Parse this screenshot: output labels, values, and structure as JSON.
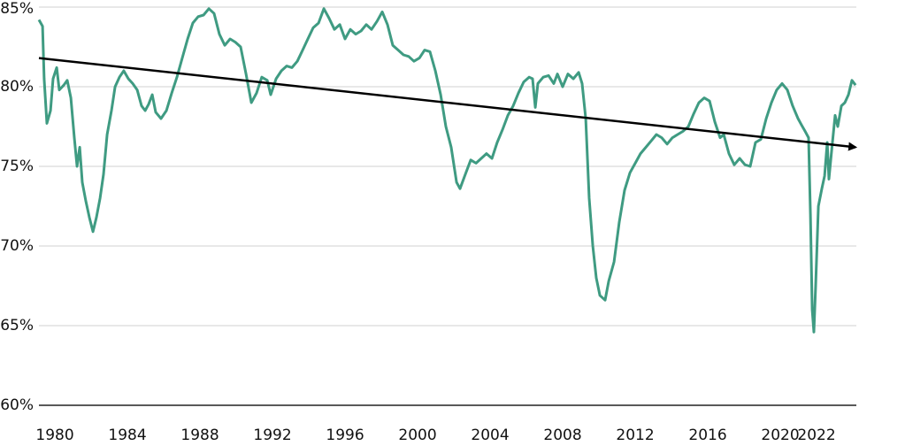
{
  "chart_data": {
    "type": "line",
    "x": [
      1979.12,
      1979.32,
      1979.41,
      1979.56,
      1979.76,
      1979.9,
      1980.1,
      1980.24,
      1980.49,
      1980.68,
      1980.88,
      1981.07,
      1981.22,
      1981.37,
      1981.51,
      1981.71,
      1981.9,
      1982.1,
      1982.29,
      1982.49,
      1982.68,
      1982.88,
      1983.12,
      1983.32,
      1983.56,
      1983.8,
      1984.05,
      1984.29,
      1984.54,
      1984.78,
      1984.98,
      1985.17,
      1985.37,
      1985.56,
      1985.85,
      1986.15,
      1986.44,
      1986.73,
      1987.02,
      1987.32,
      1987.61,
      1987.9,
      1988.2,
      1988.49,
      1988.78,
      1989.07,
      1989.37,
      1989.66,
      1989.95,
      1990.24,
      1990.54,
      1990.83,
      1991.12,
      1991.41,
      1991.71,
      1991.9,
      1992.2,
      1992.49,
      1992.78,
      1993.07,
      1993.37,
      1993.66,
      1993.95,
      1994.24,
      1994.54,
      1994.83,
      1995.12,
      1995.41,
      1995.71,
      1996.0,
      1996.29,
      1996.59,
      1996.88,
      1997.17,
      1997.46,
      1997.76,
      1998.05,
      1998.34,
      1998.63,
      1998.93,
      1999.22,
      1999.51,
      1999.8,
      2000.1,
      2000.39,
      2000.68,
      2000.98,
      2001.27,
      2001.56,
      2001.85,
      2002.15,
      2002.34,
      2002.63,
      2002.93,
      2003.22,
      2003.51,
      2003.8,
      2004.1,
      2004.39,
      2004.68,
      2004.98,
      2005.27,
      2005.56,
      2005.85,
      2006.15,
      2006.34,
      2006.49,
      2006.63,
      2006.93,
      2007.22,
      2007.51,
      2007.71,
      2008.0,
      2008.29,
      2008.59,
      2008.88,
      2009.07,
      2009.27,
      2009.46,
      2009.66,
      2009.85,
      2010.05,
      2010.34,
      2010.54,
      2010.83,
      2011.12,
      2011.41,
      2011.71,
      2012.0,
      2012.29,
      2012.59,
      2012.88,
      2013.17,
      2013.46,
      2013.76,
      2014.05,
      2014.34,
      2014.63,
      2014.93,
      2015.22,
      2015.51,
      2015.8,
      2016.1,
      2016.39,
      2016.68,
      2016.88,
      2017.17,
      2017.46,
      2017.76,
      2018.05,
      2018.34,
      2018.63,
      2018.93,
      2019.22,
      2019.51,
      2019.8,
      2020.1,
      2020.39,
      2020.68,
      2020.98,
      2021.17,
      2021.37,
      2021.56,
      2021.66,
      2021.76,
      2021.85,
      2021.95,
      2022.1,
      2022.29,
      2022.44,
      2022.59,
      2022.68,
      2022.83,
      2023.02,
      2023.17,
      2023.37,
      2023.56,
      2023.76,
      2023.95,
      2024.15
    ],
    "values": [
      84.2,
      83.8,
      80.5,
      77.7,
      78.5,
      80.5,
      81.2,
      79.8,
      80.1,
      80.4,
      79.3,
      76.8,
      75.0,
      76.2,
      74.0,
      72.8,
      71.8,
      70.9,
      71.8,
      73.0,
      74.5,
      77.0,
      78.5,
      80.0,
      80.6,
      81.0,
      80.5,
      80.2,
      79.8,
      78.8,
      78.5,
      78.9,
      79.5,
      78.4,
      78.0,
      78.5,
      79.6,
      80.6,
      81.8,
      83.0,
      84.0,
      84.4,
      84.5,
      84.9,
      84.6,
      83.3,
      82.6,
      83.0,
      82.8,
      82.5,
      80.8,
      79.0,
      79.6,
      80.6,
      80.4,
      79.5,
      80.5,
      81.0,
      81.3,
      81.2,
      81.6,
      82.3,
      83.0,
      83.7,
      84.0,
      84.9,
      84.3,
      83.6,
      83.9,
      83.0,
      83.6,
      83.3,
      83.5,
      83.9,
      83.6,
      84.1,
      84.7,
      83.9,
      82.6,
      82.3,
      82.0,
      81.9,
      81.6,
      81.8,
      82.3,
      82.2,
      81.0,
      79.5,
      77.5,
      76.2,
      74.0,
      73.6,
      74.5,
      75.4,
      75.2,
      75.5,
      75.8,
      75.5,
      76.5,
      77.3,
      78.2,
      78.8,
      79.6,
      80.3,
      80.6,
      80.5,
      78.7,
      80.2,
      80.6,
      80.7,
      80.2,
      80.8,
      80.0,
      80.8,
      80.5,
      80.9,
      80.2,
      78.0,
      73.0,
      70.0,
      68.0,
      66.9,
      66.6,
      67.8,
      69.0,
      71.5,
      73.5,
      74.6,
      75.2,
      75.8,
      76.2,
      76.6,
      77.0,
      76.8,
      76.4,
      76.8,
      77.0,
      77.2,
      77.5,
      78.3,
      79.0,
      79.3,
      79.1,
      77.8,
      76.8,
      77.0,
      75.8,
      75.1,
      75.5,
      75.1,
      75.0,
      76.5,
      76.7,
      78.0,
      79.0,
      79.8,
      80.2,
      79.8,
      78.8,
      78.0,
      77.6,
      77.2,
      76.8,
      72.0,
      66.0,
      64.6,
      67.5,
      72.5,
      73.6,
      74.4,
      76.5,
      74.2,
      76.0,
      78.2,
      77.5,
      78.8,
      79.0,
      79.5,
      80.4,
      80.1
    ],
    "color": "#3f9b82",
    "trend_line": {
      "x": [
        1979.12,
        2024.15
      ],
      "values": [
        81.8,
        76.2
      ],
      "color": "#000000"
    },
    "xlim": [
      1979.12,
      2024.29
    ],
    "xticks": [
      1980,
      1984,
      1988,
      1992,
      1996,
      2000,
      2004,
      2008,
      2012,
      2016,
      2020,
      2022
    ],
    "ylim": [
      60,
      85
    ],
    "yticks": [
      {
        "value": 60,
        "label": "60%"
      },
      {
        "value": 65,
        "label": "65%"
      },
      {
        "value": 70,
        "label": "70%"
      },
      {
        "value": 75,
        "label": "75%"
      },
      {
        "value": 80,
        "label": "80%"
      },
      {
        "value": 85,
        "label": "85%"
      }
    ],
    "grid": true
  }
}
